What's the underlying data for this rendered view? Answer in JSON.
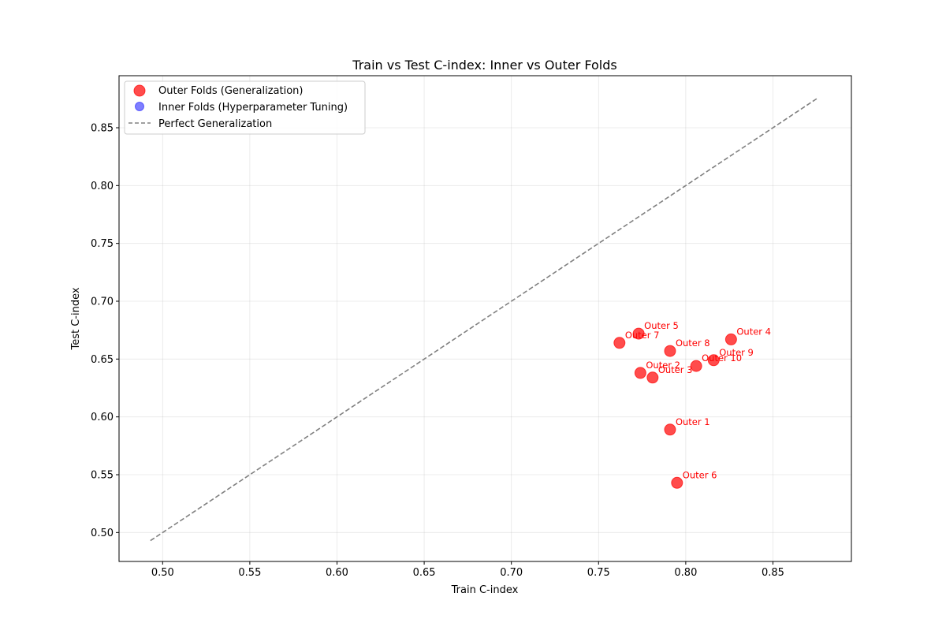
{
  "chart_data": {
    "type": "scatter",
    "title": "Train vs Test C-index: Inner vs Outer Folds",
    "xlabel": "Train C-index",
    "ylabel": "Test C-index",
    "xlim": [
      0.475,
      0.895
    ],
    "ylim": [
      0.475,
      0.895
    ],
    "xticks": [
      0.5,
      0.55,
      0.6,
      0.65,
      0.7,
      0.75,
      0.8,
      0.85
    ],
    "yticks": [
      0.5,
      0.55,
      0.6,
      0.65,
      0.7,
      0.75,
      0.8,
      0.85
    ],
    "xtick_labels": [
      "0.50",
      "0.55",
      "0.60",
      "0.65",
      "0.70",
      "0.75",
      "0.80",
      "0.85"
    ],
    "ytick_labels": [
      "0.50",
      "0.55",
      "0.60",
      "0.65",
      "0.70",
      "0.75",
      "0.80",
      "0.85"
    ],
    "grid": true,
    "legend_position": "top-left",
    "series": [
      {
        "name": "Outer Folds (Generalization)",
        "color": "#ff0000",
        "points": [
          {
            "label": "Outer 1",
            "x": 0.791,
            "y": 0.589
          },
          {
            "label": "Outer 2",
            "x": 0.774,
            "y": 0.638
          },
          {
            "label": "Outer 3",
            "x": 0.781,
            "y": 0.634
          },
          {
            "label": "Outer 4",
            "x": 0.826,
            "y": 0.667
          },
          {
            "label": "Outer 5",
            "x": 0.773,
            "y": 0.672
          },
          {
            "label": "Outer 6",
            "x": 0.795,
            "y": 0.543
          },
          {
            "label": "Outer 7",
            "x": 0.762,
            "y": 0.664
          },
          {
            "label": "Outer 8",
            "x": 0.791,
            "y": 0.657
          },
          {
            "label": "Outer 9",
            "x": 0.816,
            "y": 0.649
          },
          {
            "label": "Outer 10",
            "x": 0.806,
            "y": 0.644
          }
        ]
      },
      {
        "name": "Inner Folds (Hyperparameter Tuning)",
        "color": "#0000ff",
        "points": []
      }
    ],
    "reference_line": {
      "name": "Perfect Generalization",
      "color": "#808080",
      "from": [
        0.493,
        0.493
      ],
      "to": [
        0.876,
        0.876
      ]
    }
  }
}
